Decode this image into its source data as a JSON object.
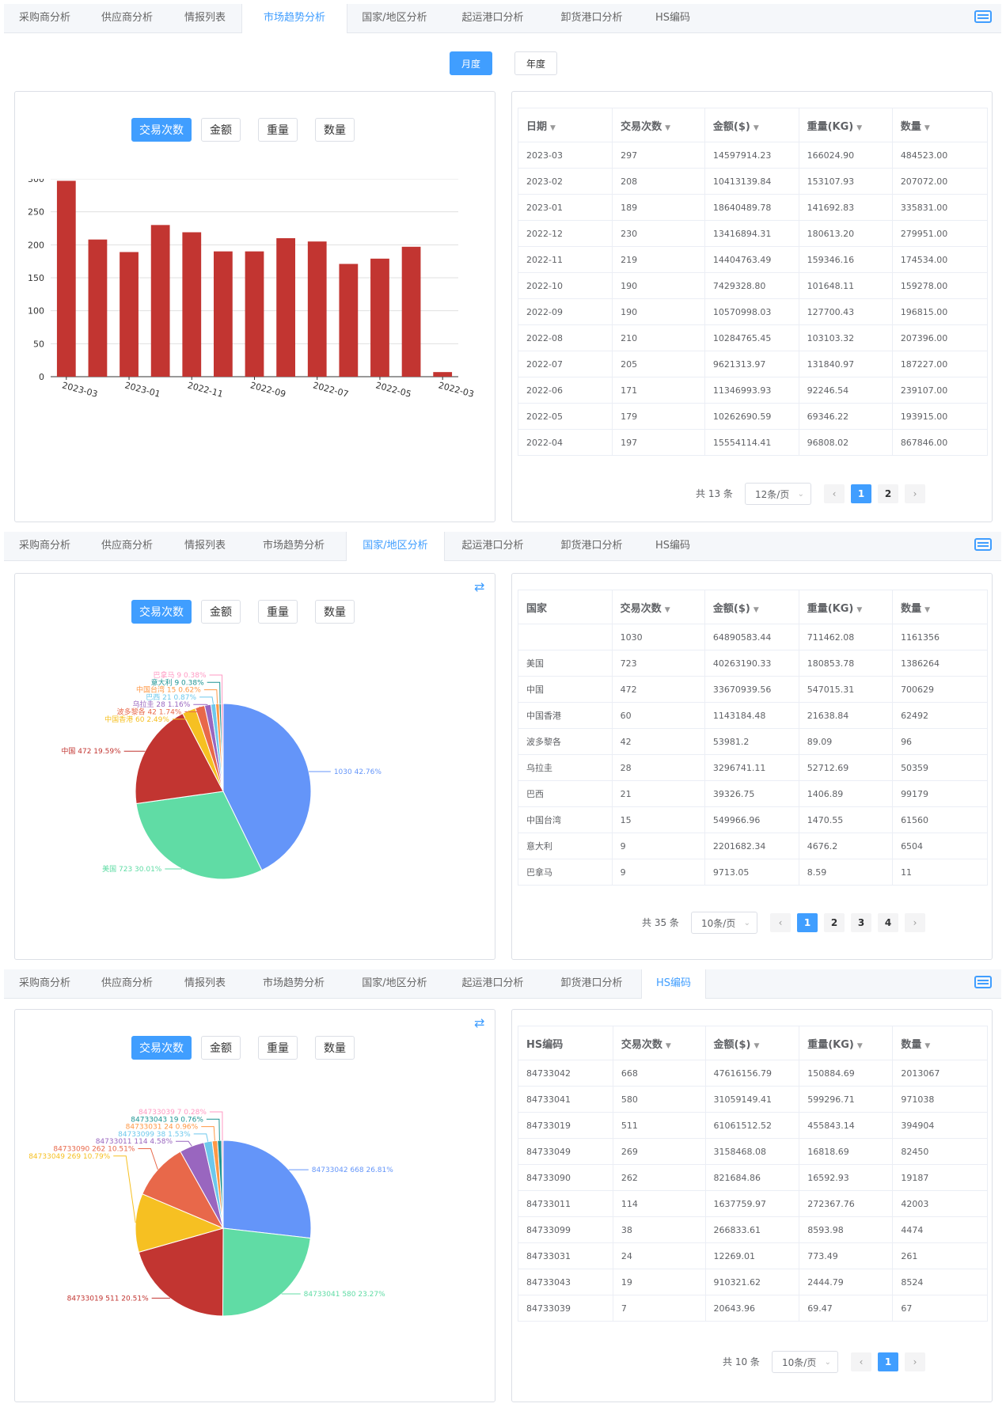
{
  "tabs": [
    "采购商分析",
    "供应商分析",
    "情报列表",
    "市场趋势分析",
    "国家/地区分析",
    "起运港口分析",
    "卸货港口分析",
    "HS编码"
  ],
  "metric_buttons": [
    "交易次数",
    "金额",
    "重量",
    "数量"
  ],
  "period_buttons": [
    "月度",
    "年度"
  ],
  "section1": {
    "active_tab": "市场趋势分析",
    "table": {
      "headers": [
        "日期",
        "交易次数",
        "金额($)",
        "重量(KG)",
        "数量"
      ],
      "rows": [
        [
          "2023-03",
          "297",
          "14597914.23",
          "166024.90",
          "484523.00"
        ],
        [
          "2023-02",
          "208",
          "10413139.84",
          "153107.93",
          "207072.00"
        ],
        [
          "2023-01",
          "189",
          "18640489.78",
          "141692.83",
          "335831.00"
        ],
        [
          "2022-12",
          "230",
          "13416894.31",
          "180613.20",
          "279951.00"
        ],
        [
          "2022-11",
          "219",
          "14404763.49",
          "159346.16",
          "174534.00"
        ],
        [
          "2022-10",
          "190",
          "7429328.80",
          "101648.11",
          "159278.00"
        ],
        [
          "2022-09",
          "190",
          "10570998.03",
          "127700.43",
          "196815.00"
        ],
        [
          "2022-08",
          "210",
          "10284765.45",
          "103103.32",
          "207396.00"
        ],
        [
          "2022-07",
          "205",
          "9621313.97",
          "131840.97",
          "187227.00"
        ],
        [
          "2022-06",
          "171",
          "11346993.93",
          "92246.54",
          "239107.00"
        ],
        [
          "2022-05",
          "179",
          "10262690.59",
          "69346.22",
          "193915.00"
        ],
        [
          "2022-04",
          "197",
          "15554114.41",
          "96808.02",
          "867846.00"
        ]
      ]
    },
    "pager": {
      "total": "共 13 条",
      "size": "12条/页",
      "pages": [
        "1",
        "2"
      ]
    }
  },
  "section2": {
    "active_tab": "国家/地区分析",
    "table": {
      "headers": [
        "国家",
        "交易次数",
        "金额($)",
        "重量(KG)",
        "数量"
      ],
      "rows": [
        [
          "",
          "1030",
          "64890583.44",
          "711462.08",
          "1161356"
        ],
        [
          "美国",
          "723",
          "40263190.33",
          "180853.78",
          "1386264"
        ],
        [
          "中国",
          "472",
          "33670939.56",
          "547015.31",
          "700629"
        ],
        [
          "中国香港",
          "60",
          "1143184.48",
          "21638.84",
          "62492"
        ],
        [
          "波多黎各",
          "42",
          "53981.2",
          "89.09",
          "96"
        ],
        [
          "乌拉圭",
          "28",
          "3296741.11",
          "52712.69",
          "50359"
        ],
        [
          "巴西",
          "21",
          "39326.75",
          "1406.89",
          "99179"
        ],
        [
          "中国台湾",
          "15",
          "549966.96",
          "1470.55",
          "61560"
        ],
        [
          "意大利",
          "9",
          "2201682.34",
          "4676.2",
          "6504"
        ],
        [
          "巴拿马",
          "9",
          "9713.05",
          "8.59",
          "11"
        ]
      ]
    },
    "pager": {
      "total": "共 35 条",
      "size": "10条/页",
      "pages": [
        "1",
        "2",
        "3",
        "4"
      ]
    }
  },
  "section3": {
    "active_tab": "HS编码",
    "table": {
      "headers": [
        "HS编码",
        "交易次数",
        "金额($)",
        "重量(KG)",
        "数量"
      ],
      "rows": [
        [
          "84733042",
          "668",
          "47616156.79",
          "150884.69",
          "2013067"
        ],
        [
          "84733041",
          "580",
          "31059149.41",
          "599296.71",
          "971038"
        ],
        [
          "84733019",
          "511",
          "61061512.52",
          "455843.14",
          "394904"
        ],
        [
          "84733049",
          "269",
          "3158468.08",
          "16818.69",
          "82450"
        ],
        [
          "84733090",
          "262",
          "821684.86",
          "16592.93",
          "19187"
        ],
        [
          "84733011",
          "114",
          "1637759.97",
          "272367.76",
          "42003"
        ],
        [
          "84733099",
          "38",
          "266833.61",
          "8593.98",
          "4474"
        ],
        [
          "84733031",
          "24",
          "12269.01",
          "773.49",
          "261"
        ],
        [
          "84733043",
          "19",
          "910321.62",
          "2444.79",
          "8524"
        ],
        [
          "84733039",
          "7",
          "20643.96",
          "69.47",
          "67"
        ]
      ]
    },
    "pager": {
      "total": "共 10 条",
      "size": "10条/页",
      "pages": [
        "1"
      ]
    }
  },
  "chart_data": [
    {
      "type": "bar",
      "categories": [
        "2023-03",
        "2023-02",
        "2023-01",
        "2022-12",
        "2022-11",
        "2022-10",
        "2022-09",
        "2022-08",
        "2022-07",
        "2022-06",
        "2022-05",
        "2022-04",
        "2022-03"
      ],
      "tick_labels": [
        "2023-03",
        "2023-01",
        "2022-11",
        "2022-09",
        "2022-07",
        "2022-05",
        "2022-03"
      ],
      "values": [
        297,
        208,
        189,
        230,
        219,
        190,
        190,
        210,
        205,
        171,
        179,
        197,
        7
      ],
      "ylim": [
        0,
        300
      ],
      "yticks": [
        0,
        50,
        100,
        150,
        200,
        250,
        300
      ],
      "color": "#c23531"
    },
    {
      "type": "pie",
      "slices": [
        {
          "label": "",
          "value": 1030,
          "text": "1030  42.76%",
          "color": "#6495f9"
        },
        {
          "label": "美国",
          "value": 723,
          "text": "美国  723  30.01%",
          "color": "#60dca5"
        },
        {
          "label": "中国",
          "value": 472,
          "text": "中国  472  19.59%",
          "color": "#c23531"
        },
        {
          "label": "中国香港",
          "value": 60,
          "text": "中国香港  60  2.49%",
          "color": "#f6c022"
        },
        {
          "label": "波多黎各",
          "value": 42,
          "text": "波多黎各  42  1.74%",
          "color": "#e8684a"
        },
        {
          "label": "乌拉圭",
          "value": 28,
          "text": "乌拉圭  28  1.16%",
          "color": "#9966bf"
        },
        {
          "label": "巴西",
          "value": 21,
          "text": "巴西  21  0.87%",
          "color": "#6dc8ec"
        },
        {
          "label": "中国台湾",
          "value": 15,
          "text": "中国台湾  15  0.62%",
          "color": "#ff9845"
        },
        {
          "label": "意大利",
          "value": 9,
          "text": "意大利  9  0.38%",
          "color": "#1e9493"
        },
        {
          "label": "巴拿马",
          "value": 9,
          "text": "巴拿马  9  0.38%",
          "color": "#ff99c3"
        }
      ]
    },
    {
      "type": "pie",
      "slices": [
        {
          "label": "84733042",
          "value": 668,
          "text": "84733042  668  26.81%",
          "color": "#6495f9"
        },
        {
          "label": "84733041",
          "value": 580,
          "text": "84733041  580  23.27%",
          "color": "#60dca5"
        },
        {
          "label": "84733019",
          "value": 511,
          "text": "84733019  511  20.51%",
          "color": "#c23531"
        },
        {
          "label": "84733049",
          "value": 269,
          "text": "84733049  269  10.79%",
          "color": "#f6c022"
        },
        {
          "label": "84733090",
          "value": 262,
          "text": "84733090  262  10.51%",
          "color": "#e8684a"
        },
        {
          "label": "84733011",
          "value": 114,
          "text": "84733011  114  4.58%",
          "color": "#9966bf"
        },
        {
          "label": "84733099",
          "value": 38,
          "text": "84733099  38  1.53%",
          "color": "#6dc8ec"
        },
        {
          "label": "84733031",
          "value": 24,
          "text": "84733031  24  0.96%",
          "color": "#ff9845"
        },
        {
          "label": "84733043",
          "value": 19,
          "text": "84733043  19  0.76%",
          "color": "#1e9493"
        },
        {
          "label": "84733039",
          "value": 7,
          "text": "84733039  7  0.28%",
          "color": "#ff99c3"
        }
      ]
    }
  ]
}
